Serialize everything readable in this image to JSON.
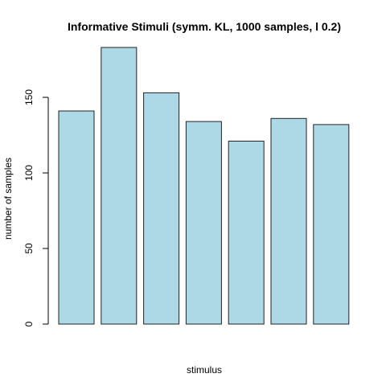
{
  "chart_data": {
    "type": "bar",
    "title": "Informative Stimuli (symm. KL, 1000 samples, l 0.2)",
    "xlabel": "stimulus",
    "ylabel": "number of samples",
    "values": [
      141,
      183,
      153,
      134,
      121,
      136,
      132
    ],
    "ylim": [
      0,
      183
    ],
    "yticks": [
      0,
      50,
      100,
      150
    ],
    "bar_color": "#add8e6",
    "border_color": "#222222",
    "grid": false
  }
}
